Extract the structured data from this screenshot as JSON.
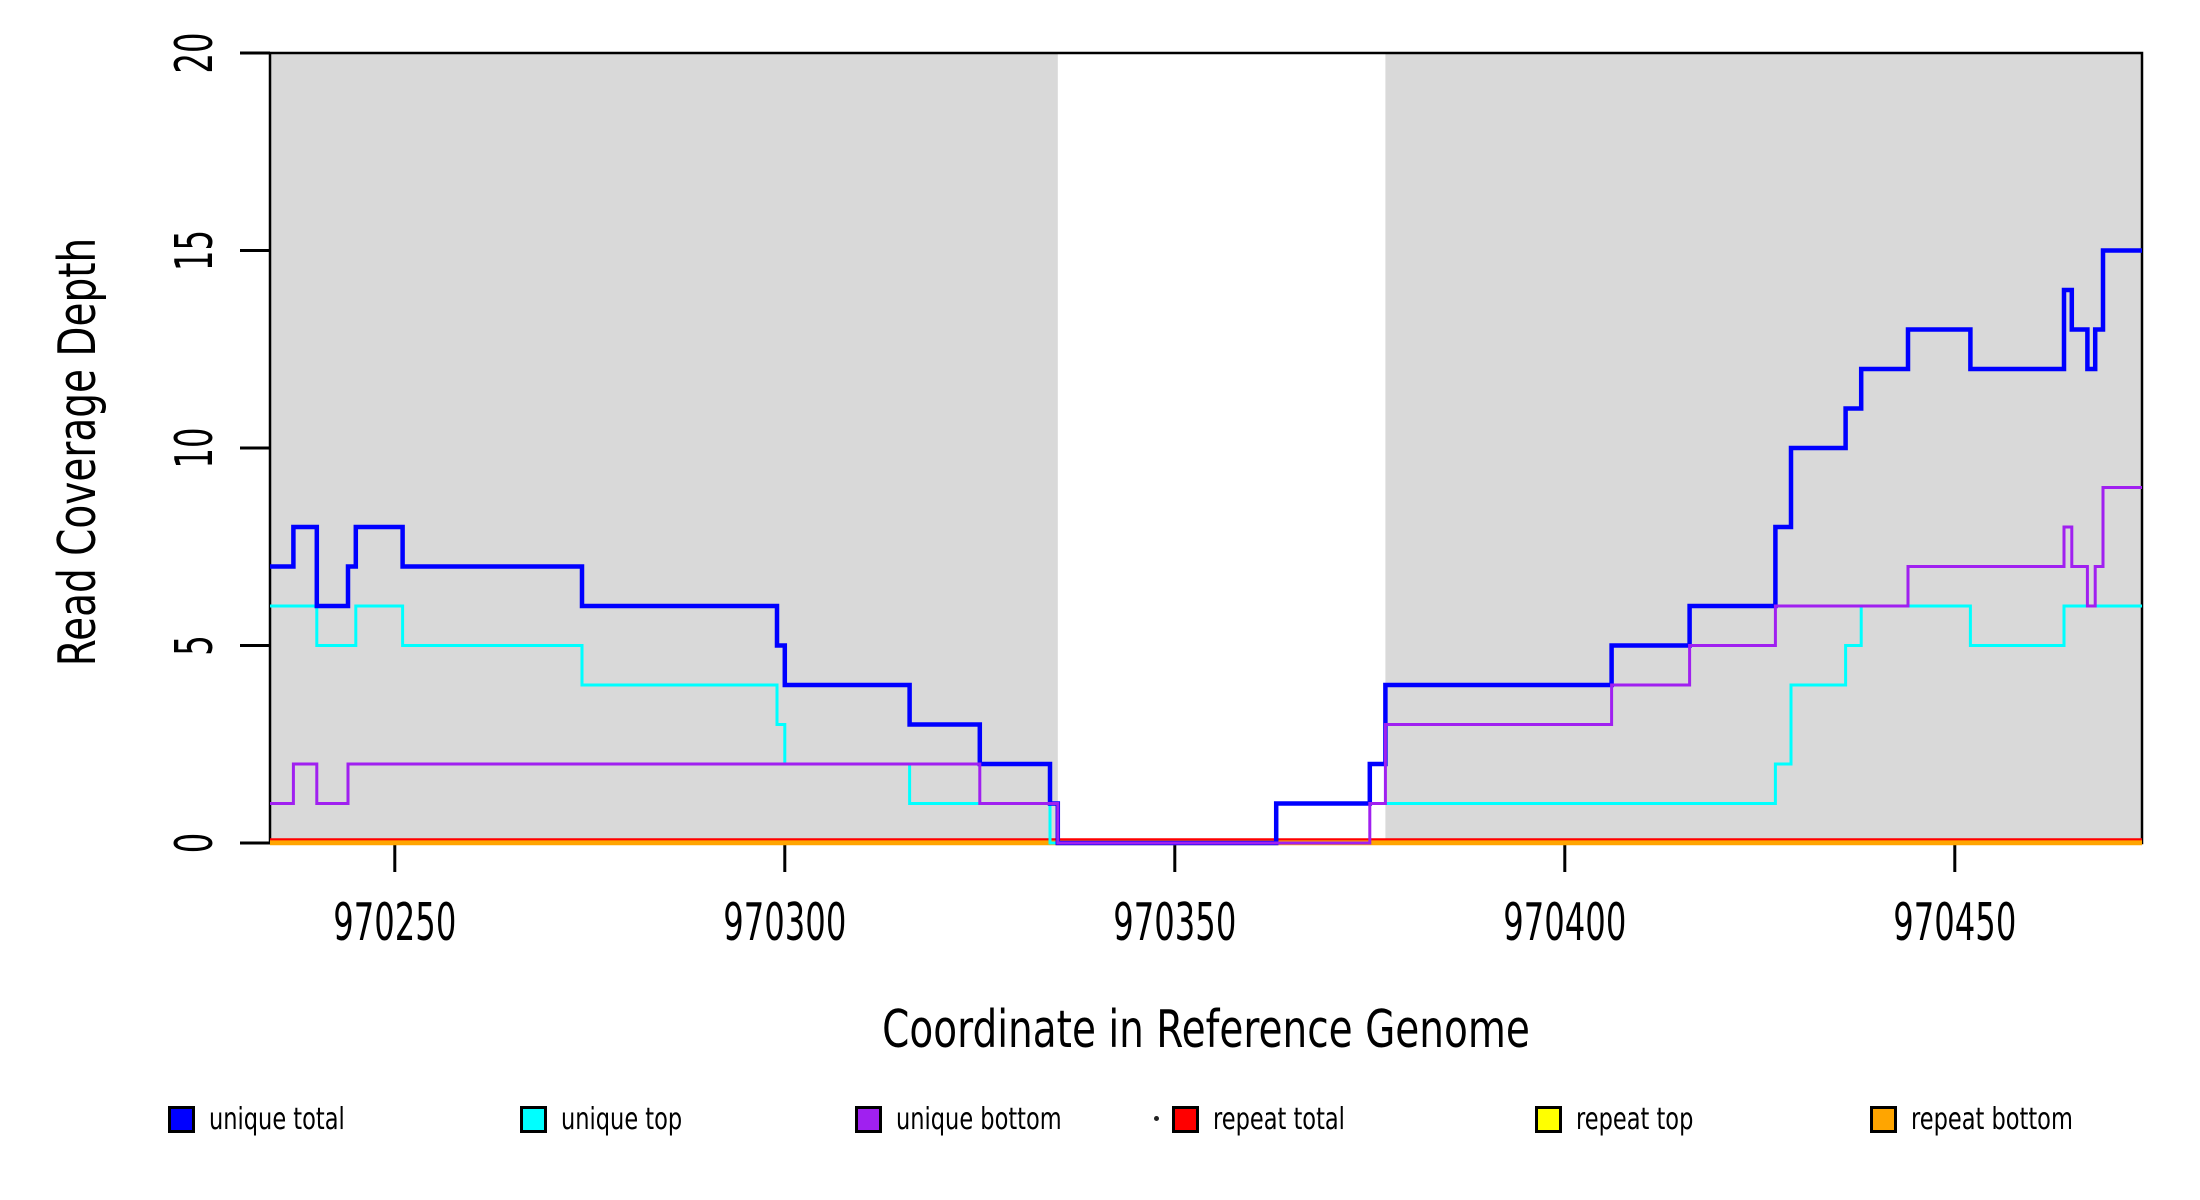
{
  "chart_data": {
    "type": "line",
    "step": true,
    "title": "",
    "xlabel": "Coordinate in Reference Genome",
    "ylabel": "Read Coverage Depth",
    "xlim": [
      970234,
      970474
    ],
    "ylim": [
      0,
      20
    ],
    "x_ticks": [
      970250,
      970300,
      970350,
      970400,
      970450
    ],
    "y_ticks": [
      0,
      5,
      10,
      15,
      20
    ],
    "grid": false,
    "legend_position": "bottom",
    "background_shading": {
      "color": "#d9d9d9",
      "regions": [
        [
          970234,
          970335
        ],
        [
          970377,
          970474
        ]
      ]
    },
    "series": [
      {
        "name": "unique total",
        "color": "#0000ff",
        "width": 4.5,
        "points": [
          [
            970234,
            7
          ],
          [
            970237,
            8
          ],
          [
            970240,
            6
          ],
          [
            970244,
            7
          ],
          [
            970245,
            8
          ],
          [
            970251,
            7
          ],
          [
            970274,
            6
          ],
          [
            970299,
            5
          ],
          [
            970300,
            4
          ],
          [
            970316,
            3
          ],
          [
            970325,
            2
          ],
          [
            970334,
            1
          ],
          [
            970335,
            0
          ],
          [
            970363,
            1
          ],
          [
            970375,
            2
          ],
          [
            970377,
            4
          ],
          [
            970406,
            5
          ],
          [
            970416,
            6
          ],
          [
            970427,
            8
          ],
          [
            970429,
            10
          ],
          [
            970436,
            11
          ],
          [
            970438,
            12
          ],
          [
            970444,
            13
          ],
          [
            970452,
            12
          ],
          [
            970464,
            14
          ],
          [
            970465,
            13
          ],
          [
            970467,
            12
          ],
          [
            970468,
            13
          ],
          [
            970469,
            15
          ]
        ]
      },
      {
        "name": "unique top",
        "color": "#00ffff",
        "width": 3,
        "points": [
          [
            970234,
            6
          ],
          [
            970240,
            5
          ],
          [
            970245,
            6
          ],
          [
            970251,
            5
          ],
          [
            970274,
            4
          ],
          [
            970299,
            3
          ],
          [
            970300,
            2
          ],
          [
            970316,
            1
          ],
          [
            970334,
            0
          ],
          [
            970363,
            1
          ],
          [
            970427,
            2
          ],
          [
            970429,
            4
          ],
          [
            970436,
            5
          ],
          [
            970438,
            6
          ],
          [
            970452,
            5
          ],
          [
            970464,
            6
          ]
        ]
      },
      {
        "name": "unique bottom",
        "color": "#a020f0",
        "width": 3,
        "points": [
          [
            970234,
            1
          ],
          [
            970237,
            2
          ],
          [
            970240,
            1
          ],
          [
            970244,
            2
          ],
          [
            970325,
            1
          ],
          [
            970335,
            0
          ],
          [
            970375,
            1
          ],
          [
            970377,
            3
          ],
          [
            970406,
            4
          ],
          [
            970416,
            5
          ],
          [
            970427,
            6
          ],
          [
            970444,
            7
          ],
          [
            970464,
            8
          ],
          [
            970465,
            7
          ],
          [
            970467,
            6
          ],
          [
            970468,
            7
          ],
          [
            970469,
            9
          ]
        ]
      },
      {
        "name": "repeat total",
        "color": "#ff0000",
        "width": 4.5,
        "points": [
          [
            970234,
            0
          ]
        ]
      },
      {
        "name": "repeat top",
        "color": "#ffff00",
        "width": 3,
        "points": [
          [
            970234,
            0
          ]
        ]
      },
      {
        "name": "repeat bottom",
        "color": "#ffa500",
        "width": 4.5,
        "points": [
          [
            970234,
            0
          ]
        ]
      }
    ],
    "draw_order": [
      "repeat total",
      "repeat top",
      "repeat bottom",
      "unique top",
      "unique total",
      "unique bottom"
    ]
  },
  "legend": {
    "items": [
      {
        "label": "unique total",
        "color": "#0000ff"
      },
      {
        "label": "unique top",
        "color": "#00ffff"
      },
      {
        "label": "unique bottom",
        "color": "#a020f0"
      },
      {
        "label": "repeat total",
        "color": "#ff0000"
      },
      {
        "label": "repeat top",
        "color": "#ffff00"
      },
      {
        "label": "repeat bottom",
        "color": "#ffa500"
      }
    ]
  }
}
